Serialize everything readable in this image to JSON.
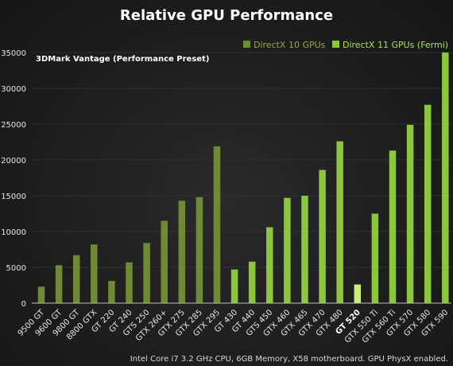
{
  "chart_data": {
    "type": "bar",
    "title": "Relative GPU Performance",
    "subtitle": "3DMark Vantage (Performance Preset)",
    "footnote": "Intel Core i7 3.2 GHz CPU, 6GB Memory, X58 motherboard. GPU PhysX enabled.",
    "xlabel": "",
    "ylabel": "",
    "ylim": [
      0,
      35000
    ],
    "yticks": [
      0,
      5000,
      10000,
      15000,
      20000,
      25000,
      30000,
      35000
    ],
    "grid": false,
    "legend_position": "top-right",
    "highlight_category": "GT 520",
    "colors": {
      "dx10": "#6f8a34",
      "dx11": "#8cc63f",
      "highlight": "#c8ef7a"
    },
    "series": [
      {
        "name": "DirectX 10 GPUs",
        "color_key": "dx10",
        "categories": [
          "9500 GT",
          "9600 GT",
          "9800 GT",
          "8800 GTX",
          "GT 220",
          "GT 240",
          "GTS 250",
          "GTX 260+",
          "GTX 275",
          "GTX 285",
          "GTX 295"
        ],
        "values": [
          2300,
          5300,
          6700,
          8200,
          3100,
          5700,
          8400,
          11500,
          14300,
          14800,
          21900
        ]
      },
      {
        "name": "DirectX 11 GPUs (Fermi)",
        "color_key": "dx11",
        "categories": [
          "GT 430",
          "GT 440",
          "GTS 450",
          "GTX 460",
          "GTX 465",
          "GTX 470",
          "GTX 480",
          "GT 520",
          "GTX 550 Ti",
          "GTX 560 Ti",
          "GTX 570",
          "GTX 580",
          "GTX 590"
        ],
        "values": [
          4700,
          5800,
          10600,
          14700,
          15000,
          18600,
          22600,
          2600,
          12500,
          21300,
          24900,
          27700,
          35000
        ]
      }
    ]
  }
}
